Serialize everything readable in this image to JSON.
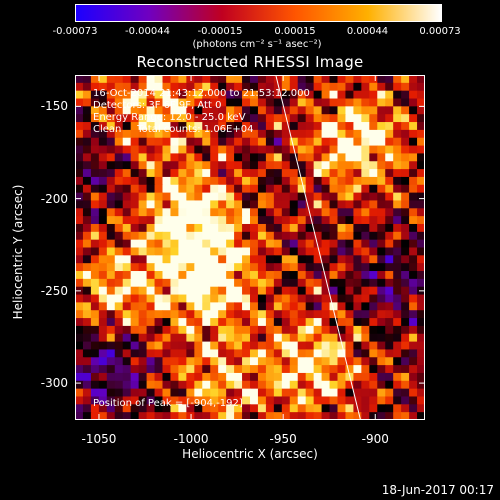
{
  "chart_data": {
    "type": "heatmap",
    "title": "Reconstructed RHESSI Image",
    "xlabel": "Heliocentric X (arcsec)",
    "ylabel": "Heliocentric Y (arcsec)",
    "xlim": [
      -1063,
      -873
    ],
    "ylim": [
      -320,
      -133
    ],
    "x_ticks": [
      -1050,
      -1000,
      -950,
      -900
    ],
    "x_tick_labels": [
      "-1050",
      "-1000",
      "-950",
      "-900"
    ],
    "y_ticks": [
      -150,
      -200,
      -250,
      -300
    ],
    "y_tick_labels": [
      "-150",
      "-200",
      "-250",
      "-300"
    ],
    "colorbar": {
      "range": [
        -0.00073,
        0.00073
      ],
      "tick_values": [
        -0.00073,
        -0.00044,
        -0.00015,
        0.00015,
        0.00044,
        0.00073
      ],
      "tick_labels": [
        "-0.00073",
        "-0.00044",
        "-0.00015",
        "0.00015",
        "0.00044",
        "0.00073"
      ],
      "label": "(photons cm⁻² s⁻¹ asec⁻²)",
      "colors": [
        "#1c00ff",
        "#7000c0",
        "#c00020",
        "#ff5500",
        "#ffb000",
        "#ffffff"
      ]
    },
    "annotations": [
      "16-Oct-2014 21:43:12.000 to 21:53:12.000",
      "Detectors: 3F 6F 9F, Att 0",
      "Energy Range: 12.0 - 25.0 keV",
      "Clean     Total counts: 1.06E+04"
    ],
    "peak_label": "Position of Peak = [-904,-192]",
    "limb_line": {
      "x": [
        -954,
        -908
      ],
      "y": [
        -133,
        -320
      ]
    },
    "bright_regions": [
      {
        "x": -1000,
        "y": -210,
        "level": 0.95
      },
      {
        "x": -990,
        "y": -245,
        "level": 0.9
      },
      {
        "x": -910,
        "y": -170,
        "level": 0.85
      },
      {
        "x": -935,
        "y": -290,
        "level": 0.75
      },
      {
        "x": -1020,
        "y": -150,
        "level": 0.7
      },
      {
        "x": -1040,
        "y": -250,
        "level": 0.65
      },
      {
        "x": -985,
        "y": -300,
        "level": 0.55
      }
    ],
    "dim_regions": [
      {
        "x": -1045,
        "y": -290,
        "level": -0.6
      },
      {
        "x": -890,
        "y": -245,
        "level": -0.35
      },
      {
        "x": -1055,
        "y": -185,
        "level": -0.3
      }
    ]
  },
  "timestamp": "18-Jun-2017 00:17"
}
